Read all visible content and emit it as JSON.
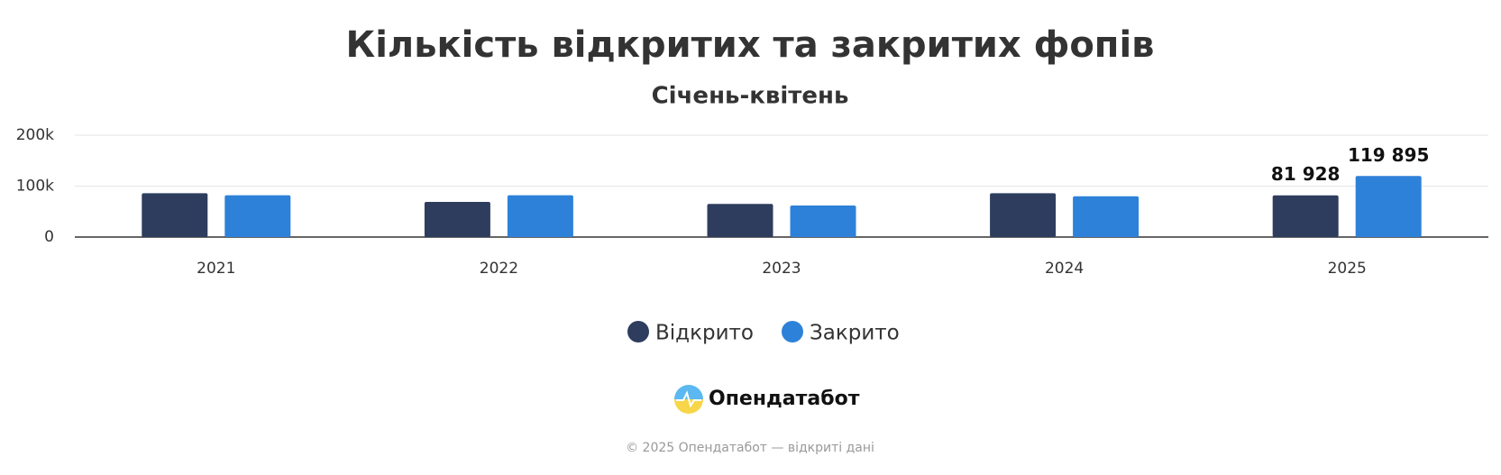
{
  "chart_data": {
    "type": "bar",
    "title": "Кількість відкритих та закритих фопів",
    "subtitle": "Січень-квітень",
    "categories": [
      "2021",
      "2022",
      "2023",
      "2024",
      "2025"
    ],
    "series": [
      {
        "name": "Відкрито",
        "color": "#2e3d5e",
        "values": [
          86000,
          69000,
          65000,
          86000,
          81928
        ],
        "value_labels": [
          null,
          null,
          null,
          null,
          "81 928"
        ]
      },
      {
        "name": "Закрито",
        "color": "#2e81d9",
        "values": [
          82000,
          82000,
          62000,
          80000,
          119895
        ],
        "value_labels": [
          null,
          null,
          null,
          null,
          "119 895"
        ]
      }
    ],
    "ylim": [
      0,
      200000
    ],
    "yticks": [
      0,
      {
        "value": 100000,
        "label": "100k"
      },
      {
        "value": 200000,
        "label": "200k"
      }
    ],
    "grid": true,
    "legend": "bottom"
  },
  "footer": {
    "brand": "Опендатабот",
    "copyright": "© 2025 Опендатабот — відкриті дані"
  }
}
